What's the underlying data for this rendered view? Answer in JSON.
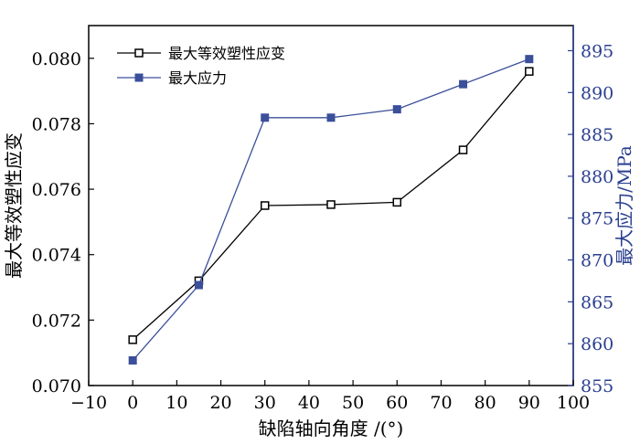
{
  "chart_data": {
    "type": "line",
    "xlabel": "缺陷轴向角度 /(°)",
    "ylabel_left": "最大等效塑性应变",
    "ylabel_right": "最大应力/MPa",
    "xlim": [
      -10,
      100
    ],
    "ylim_left": [
      0.07,
      0.081
    ],
    "ylim_right": [
      855,
      898
    ],
    "x_ticks": [
      "−10",
      "0",
      "10",
      "20",
      "30",
      "40",
      "50",
      "60",
      "70",
      "80",
      "90",
      "100"
    ],
    "y_ticks_left": [
      "0.070",
      "0.072",
      "0.074",
      "0.076",
      "0.078",
      "0.080"
    ],
    "y_ticks_right": [
      "855",
      "860",
      "865",
      "870",
      "875",
      "880",
      "885",
      "890",
      "895"
    ],
    "legend_position": "top-left",
    "series": [
      {
        "name": "最大等效塑性应变",
        "axis": "left",
        "color": "#000000",
        "marker": "open-square",
        "x": [
          0,
          15,
          30,
          45,
          60,
          75,
          90
        ],
        "y": [
          0.0714,
          0.0732,
          0.0755,
          0.07553,
          0.0756,
          0.0772,
          0.0796
        ]
      },
      {
        "name": "最大应力",
        "axis": "right",
        "color": "#3b4f9a",
        "marker": "filled-square",
        "x": [
          0,
          15,
          30,
          45,
          60,
          75,
          90
        ],
        "y": [
          858,
          867,
          887,
          887,
          888,
          891,
          894
        ]
      }
    ]
  }
}
